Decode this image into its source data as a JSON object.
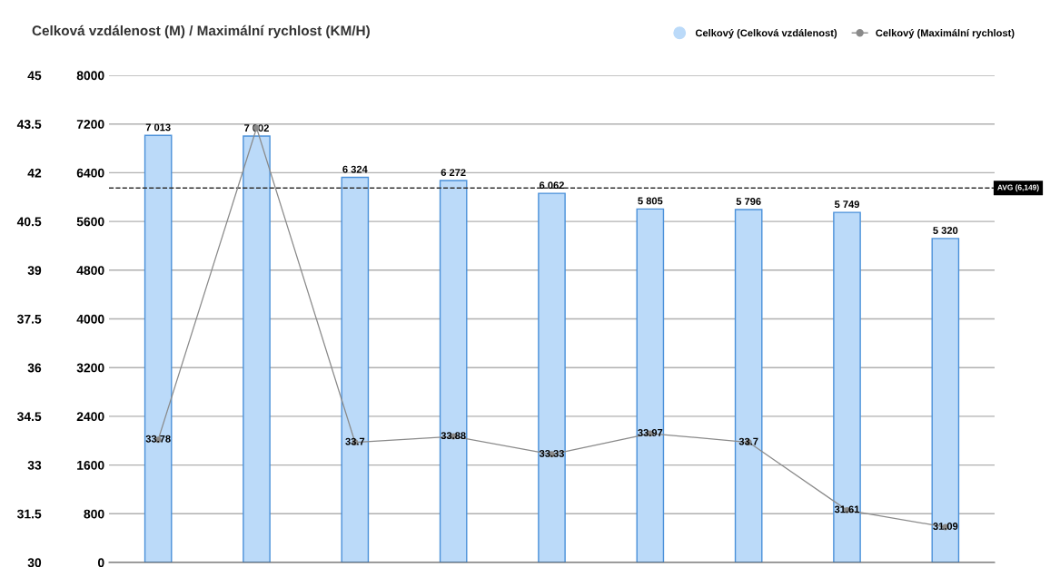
{
  "chart_data": {
    "type": "bar",
    "title": "Celková vzdálenost (M) / Maximální rychlost (KM/H)",
    "categories": [
      null,
      null,
      null,
      null,
      null,
      null,
      null,
      null,
      null
    ],
    "series": [
      {
        "name": "Celkový (Celková vzdálenost)",
        "color": "#bbdaf9",
        "values": [
          7013,
          7002,
          6324,
          6272,
          6062,
          5805,
          5796,
          5749,
          5320
        ],
        "value_labels": [
          "7 013",
          "7 002",
          "6 324",
          "6 272",
          "6 062",
          "5 805",
          "5 796",
          "5 749",
          "5 320"
        ]
      },
      {
        "name": "Celkový (Maximální rychlost)",
        "type": "line",
        "axis": "y2",
        "color": "#8a8a8a",
        "marker": "circle",
        "values": [
          33.78,
          43.38,
          33.7,
          33.88,
          33.33,
          33.97,
          33.7,
          31.61,
          31.09
        ],
        "value_labels": [
          "33.78",
          null,
          "33.7",
          "33.88",
          "33.33",
          "33.97",
          "33.7",
          "31.61",
          "31.09"
        ]
      }
    ],
    "ylim": [
      0,
      8000
    ],
    "yticks": [
      0,
      800,
      1600,
      2400,
      3200,
      4000,
      4800,
      5600,
      6400,
      7200,
      8000
    ],
    "y2lim": [
      30,
      45
    ],
    "y2ticks": [
      30,
      31.5,
      33,
      34.5,
      36,
      37.5,
      39,
      40.5,
      42,
      43.5,
      45
    ],
    "ref_lines": [
      {
        "axis": "y",
        "value": 6149,
        "label": "AVG (6,149)",
        "color": "#333333",
        "line_style": "dashed"
      }
    ],
    "grid": "y",
    "legend": "top right"
  }
}
